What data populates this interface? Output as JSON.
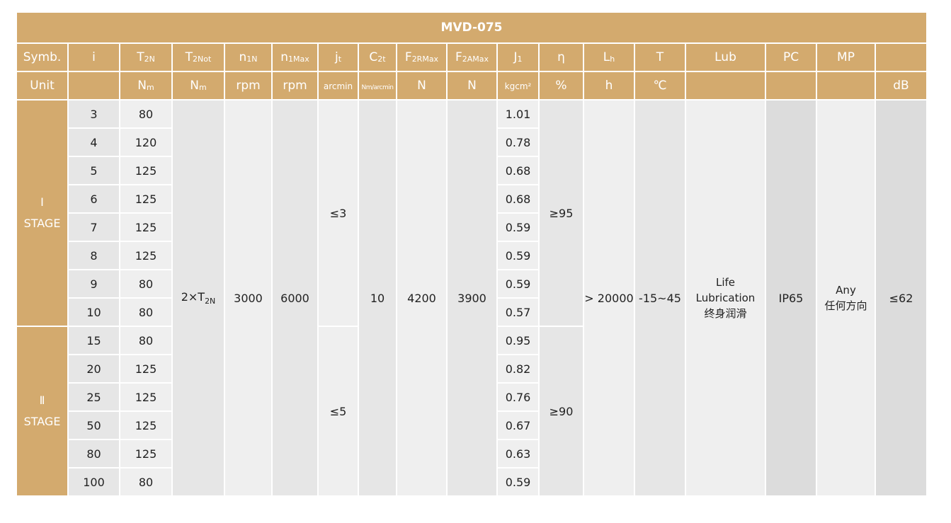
{
  "title": "MVD-075",
  "header": {
    "symb": "Symb.",
    "unit": "Unit",
    "columns": [
      {
        "main": "i",
        "sub": "",
        "unit": "",
        "unit_sub": ""
      },
      {
        "main": "T",
        "sub": "2N",
        "unit": "N",
        "unit_sub": "m"
      },
      {
        "main": "T",
        "sub": "2Not",
        "unit": "N",
        "unit_sub": "m"
      },
      {
        "main": "n",
        "sub": "1N",
        "unit": "rpm",
        "unit_sub": ""
      },
      {
        "main": "n",
        "sub": "1Max",
        "unit": "rpm",
        "unit_sub": ""
      },
      {
        "main": "j",
        "sub": "t",
        "unit": "arcmin",
        "unit_sub": ""
      },
      {
        "main": "C",
        "sub": "2t",
        "unit": "Nm/arcmin",
        "unit_sub": ""
      },
      {
        "main": "F",
        "sub": "2RMax",
        "unit": "N",
        "unit_sub": ""
      },
      {
        "main": "F",
        "sub": "2AMax",
        "unit": "N",
        "unit_sub": ""
      },
      {
        "main": "J",
        "sub": "1",
        "unit": "kgcm²",
        "unit_sub": ""
      },
      {
        "main": "η",
        "sub": "",
        "unit": "%",
        "unit_sub": ""
      },
      {
        "main": "L",
        "sub": "h",
        "unit": "h",
        "unit_sub": ""
      },
      {
        "main": "T",
        "sub": "",
        "unit": "℃",
        "unit_sub": ""
      },
      {
        "main": "Lub",
        "sub": "",
        "unit": "",
        "unit_sub": ""
      },
      {
        "main": "PC",
        "sub": "",
        "unit": "",
        "unit_sub": ""
      },
      {
        "main": "MP",
        "sub": "",
        "unit": "",
        "unit_sub": ""
      },
      {
        "main": "",
        "sub": "",
        "unit": "dB",
        "unit_sub": ""
      }
    ]
  },
  "stages": [
    {
      "numeral": "Ⅰ",
      "label": "STAGE",
      "jt": "≤3",
      "eta": "≥95"
    },
    {
      "numeral": "Ⅱ",
      "label": "STAGE",
      "jt": "≤5",
      "eta": "≥90"
    }
  ],
  "rows": [
    {
      "stage": 0,
      "i": "3",
      "t2n": "80",
      "j1": "1.01"
    },
    {
      "stage": 0,
      "i": "4",
      "t2n": "120",
      "j1": "0.78"
    },
    {
      "stage": 0,
      "i": "5",
      "t2n": "125",
      "j1": "0.68"
    },
    {
      "stage": 0,
      "i": "6",
      "t2n": "125",
      "j1": "0.68"
    },
    {
      "stage": 0,
      "i": "7",
      "t2n": "125",
      "j1": "0.59"
    },
    {
      "stage": 0,
      "i": "8",
      "t2n": "125",
      "j1": "0.59"
    },
    {
      "stage": 0,
      "i": "9",
      "t2n": "80",
      "j1": "0.59"
    },
    {
      "stage": 0,
      "i": "10",
      "t2n": "80",
      "j1": "0.57"
    },
    {
      "stage": 1,
      "i": "15",
      "t2n": "80",
      "j1": "0.95"
    },
    {
      "stage": 1,
      "i": "20",
      "t2n": "125",
      "j1": "0.82"
    },
    {
      "stage": 1,
      "i": "25",
      "t2n": "125",
      "j1": "0.76"
    },
    {
      "stage": 1,
      "i": "50",
      "t2n": "125",
      "j1": "0.67"
    },
    {
      "stage": 1,
      "i": "80",
      "t2n": "125",
      "j1": "0.63"
    },
    {
      "stage": 1,
      "i": "100",
      "t2n": "80",
      "j1": "0.59"
    }
  ],
  "shared": {
    "t2not_main": "2×T",
    "t2not_sub": "2N",
    "n1n": "3000",
    "n1max": "6000",
    "c2t": "10",
    "f2rmax": "4200",
    "f2amax": "3900",
    "lh": "> 20000",
    "temp": "-15~45",
    "lub_en1": "Life",
    "lub_en2": "Lubrication",
    "lub_cn": "终身润滑",
    "pc": "IP65",
    "mp_en": "Any",
    "mp_cn": "任何方向",
    "db": "≤62"
  },
  "colors": {
    "header": "#d3aa6e",
    "cell_light": "#efefef",
    "cell_mid": "#e6e6e6",
    "cell_dark": "#dcdcdc"
  }
}
